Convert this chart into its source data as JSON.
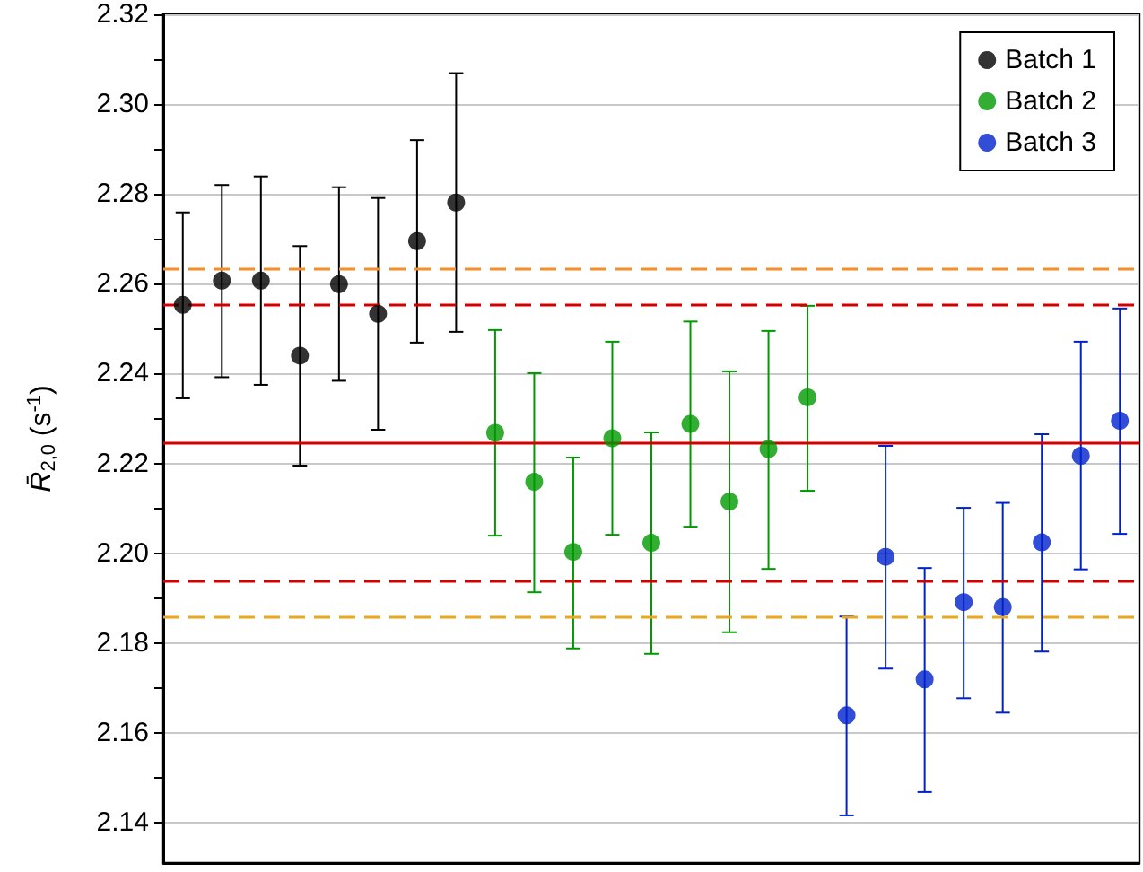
{
  "chart_data": {
    "type": "scatter",
    "ylabel": "R̄$_{2,0}$ (s$^{-1}$)",
    "categories": [
      null,
      null,
      null,
      null,
      null,
      null,
      null,
      null,
      null,
      null,
      null,
      null,
      null,
      null,
      null,
      null,
      null,
      null,
      null,
      null,
      null,
      null,
      null,
      null,
      null
    ],
    "series": [
      {
        "name": "Batch 1",
        "color": "#000000",
        "values": [
          2.2553,
          2.2607,
          2.2607,
          2.244,
          2.2599,
          2.2533,
          2.2695,
          2.2781,
          null,
          null,
          null,
          null,
          null,
          null,
          null,
          null,
          null,
          null,
          null,
          null,
          null,
          null,
          null,
          null,
          null
        ],
        "errors": [
          [
            2.2345,
            2.2759
          ],
          [
            2.2392,
            2.282
          ],
          [
            2.2375,
            2.2839
          ],
          [
            2.2195,
            2.2684
          ],
          [
            2.2384,
            2.2815
          ],
          [
            2.2275,
            2.2791
          ],
          [
            2.2469,
            2.292
          ],
          [
            2.2493,
            2.3069
          ],
          null,
          null,
          null,
          null,
          null,
          null,
          null,
          null,
          null,
          null,
          null,
          null,
          null,
          null,
          null,
          null,
          null
        ]
      },
      {
        "name": "Batch 2",
        "color": "#009900",
        "values": [
          null,
          null,
          null,
          null,
          null,
          null,
          null,
          null,
          2.2268,
          2.2159,
          2.2003,
          2.2256,
          2.2023,
          2.2288,
          2.2115,
          2.2232,
          2.2347,
          null,
          null,
          null,
          null,
          null,
          null,
          null,
          null
        ],
        "errors": [
          null,
          null,
          null,
          null,
          null,
          null,
          null,
          null,
          [
            2.2039,
            2.2497
          ],
          [
            2.1913,
            2.2401
          ],
          [
            2.1788,
            2.2213
          ],
          [
            2.2041,
            2.2471
          ],
          [
            2.1776,
            2.2269
          ],
          [
            2.2059,
            2.2516
          ],
          [
            2.1824,
            2.2405
          ],
          [
            2.1965,
            2.2495
          ],
          [
            2.2139,
            2.2551
          ],
          null,
          null,
          null,
          null,
          null,
          null,
          null,
          null
        ]
      },
      {
        "name": "Batch 3",
        "color": "#0022cc",
        "values": [
          null,
          null,
          null,
          null,
          null,
          null,
          null,
          null,
          null,
          null,
          null,
          null,
          null,
          null,
          null,
          null,
          null,
          2.1639,
          2.1992,
          2.1719,
          2.1891,
          2.188,
          2.2024,
          2.2217,
          2.2295
        ],
        "errors": [
          null,
          null,
          null,
          null,
          null,
          null,
          null,
          null,
          null,
          null,
          null,
          null,
          null,
          null,
          null,
          null,
          null,
          [
            2.1416,
            2.1859
          ],
          [
            2.1743,
            2.2239
          ],
          [
            2.1468,
            2.1967
          ],
          [
            2.1677,
            2.2101
          ],
          [
            2.1645,
            2.2112
          ],
          [
            2.1781,
            2.2265
          ],
          [
            2.1964,
            2.2471
          ],
          [
            2.2043,
            2.2545
          ]
        ]
      }
    ],
    "ylim": [
      2.131,
      2.32
    ],
    "yticks": [
      2.14,
      {
        "value": 2.15,
        "label": null
      },
      2.16,
      {
        "value": 2.17,
        "label": null
      },
      2.18,
      {
        "value": 2.19,
        "label": null
      },
      {
        "value": 2.2,
        "label": "2.20"
      },
      {
        "value": 2.21,
        "label": null
      },
      2.22,
      {
        "value": 2.23,
        "label": null
      },
      2.24,
      {
        "value": 2.25,
        "label": null
      },
      2.26,
      {
        "value": 2.27,
        "label": null
      },
      2.28,
      {
        "value": 2.29,
        "label": null
      },
      {
        "value": 2.3,
        "label": "2.30"
      },
      {
        "value": 2.31,
        "label": null
      },
      2.32
    ],
    "ref_lines": [
      {
        "axis": "y",
        "value": 2.2633,
        "color": "#f28e2b",
        "line_style": "dashed"
      },
      {
        "axis": "y",
        "value": 2.2552,
        "color": "#d40000",
        "line_style": "dashed"
      },
      {
        "axis": "y",
        "value": 2.2247,
        "color": "#d40000",
        "line_style": "solid"
      },
      {
        "axis": "y",
        "value": 2.1939,
        "color": "#d40000",
        "line_style": "dashed"
      },
      {
        "axis": "y",
        "value": 2.1859,
        "color": "#e8a820",
        "line_style": "dashed"
      }
    ],
    "grid": "y",
    "legend": "top right",
    "marker": "circle",
    "tick_labels": "y"
  }
}
